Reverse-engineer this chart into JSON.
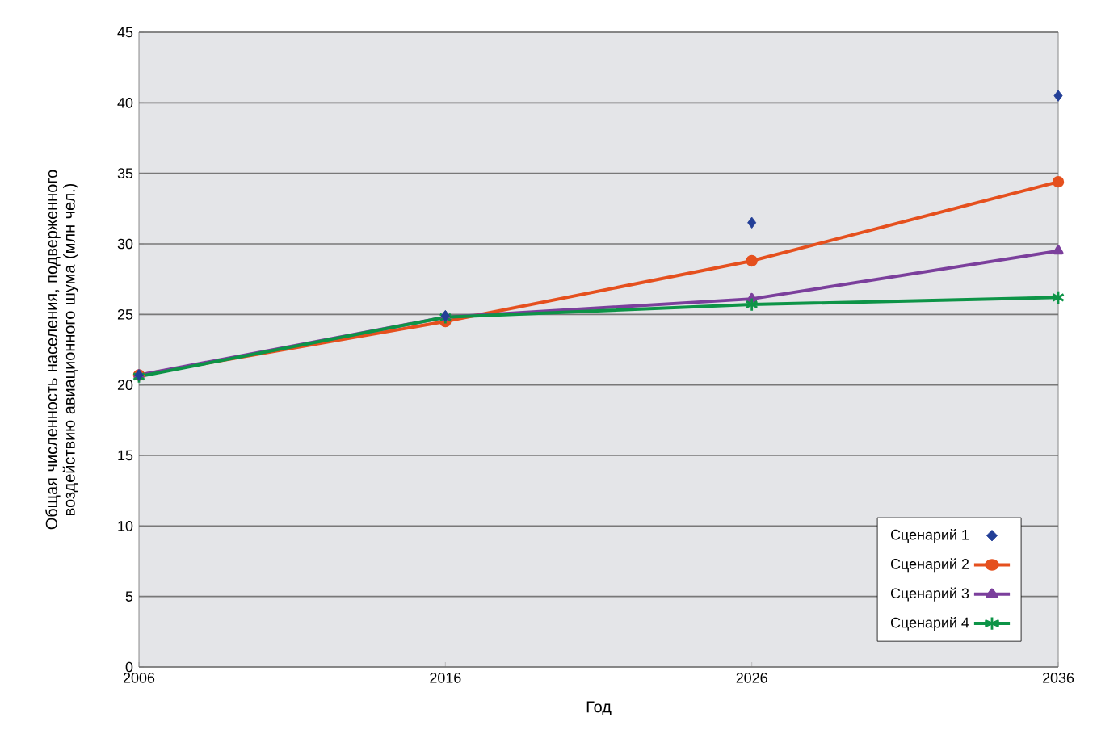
{
  "chart_data": {
    "type": "line",
    "xlabel": "Год",
    "ylabel": "Общая численность населения, подверженного воздействию авиационного шума (млн чел.)",
    "x": [
      2006,
      2016,
      2026,
      2036
    ],
    "series": [
      {
        "name": "Сценарий 1",
        "type": "scatter",
        "marker": "diamond",
        "color": "#233f97",
        "values": [
          20.7,
          24.9,
          31.5,
          40.5
        ]
      },
      {
        "name": "Сценарий 2",
        "marker": "circle",
        "color": "#e5501e",
        "values": [
          20.7,
          24.5,
          28.8,
          34.4
        ]
      },
      {
        "name": "Сценарий 3",
        "marker": "triangle",
        "color": "#7b3f9c",
        "values": [
          20.7,
          24.8,
          26.1,
          29.5
        ]
      },
      {
        "name": "Сценарий 4",
        "marker": "cross",
        "color": "#0d9447",
        "values": [
          20.6,
          24.8,
          25.7,
          26.2
        ]
      }
    ],
    "xlim": [
      2006,
      2036
    ],
    "xticks": [
      2006,
      2016,
      2026,
      2036
    ],
    "ylim": [
      0,
      45
    ],
    "yticks": [
      0,
      5,
      10,
      15,
      20,
      25,
      30,
      35,
      40,
      45
    ],
    "grid": "y",
    "legend": "bottom right"
  }
}
